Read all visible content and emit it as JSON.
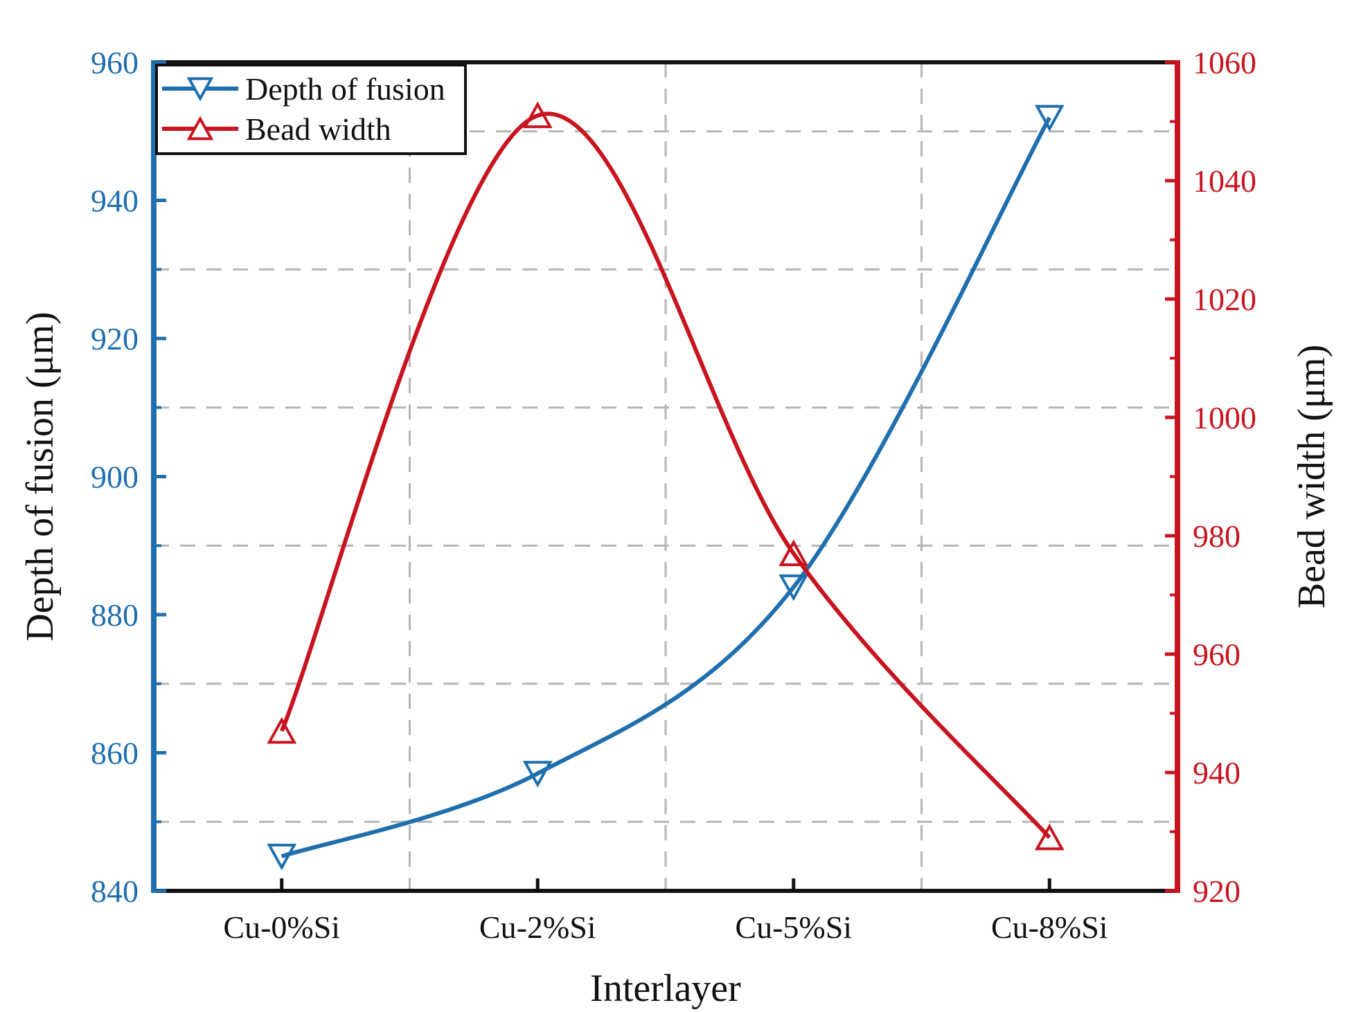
{
  "chart_data": {
    "type": "line",
    "xlabel": "Interlayer",
    "categories": [
      "Cu-0%Si",
      "Cu-2%Si",
      "Cu-5%Si",
      "Cu-8%Si"
    ],
    "y_left": {
      "label": "Depth of fusion (μm)",
      "lim": [
        840,
        960
      ],
      "ticks": [
        840,
        860,
        880,
        900,
        920,
        940,
        960
      ],
      "color": "#1f6fae"
    },
    "y_right": {
      "label": "Bead width (μm)",
      "lim": [
        920,
        1060
      ],
      "ticks": [
        920,
        940,
        960,
        980,
        1000,
        1020,
        1040,
        1060
      ],
      "color": "#c8141e"
    },
    "series": [
      {
        "name": "Depth of fusion",
        "axis": "left",
        "marker": "triangle-down",
        "color": "#1f6fae",
        "values": [
          845,
          857,
          884,
          952
        ]
      },
      {
        "name": "Bead width",
        "axis": "right",
        "marker": "triangle-up",
        "color": "#c8141e",
        "values": [
          947,
          1051,
          977,
          929
        ]
      }
    ],
    "grid": true,
    "legend_position": "top-left"
  }
}
